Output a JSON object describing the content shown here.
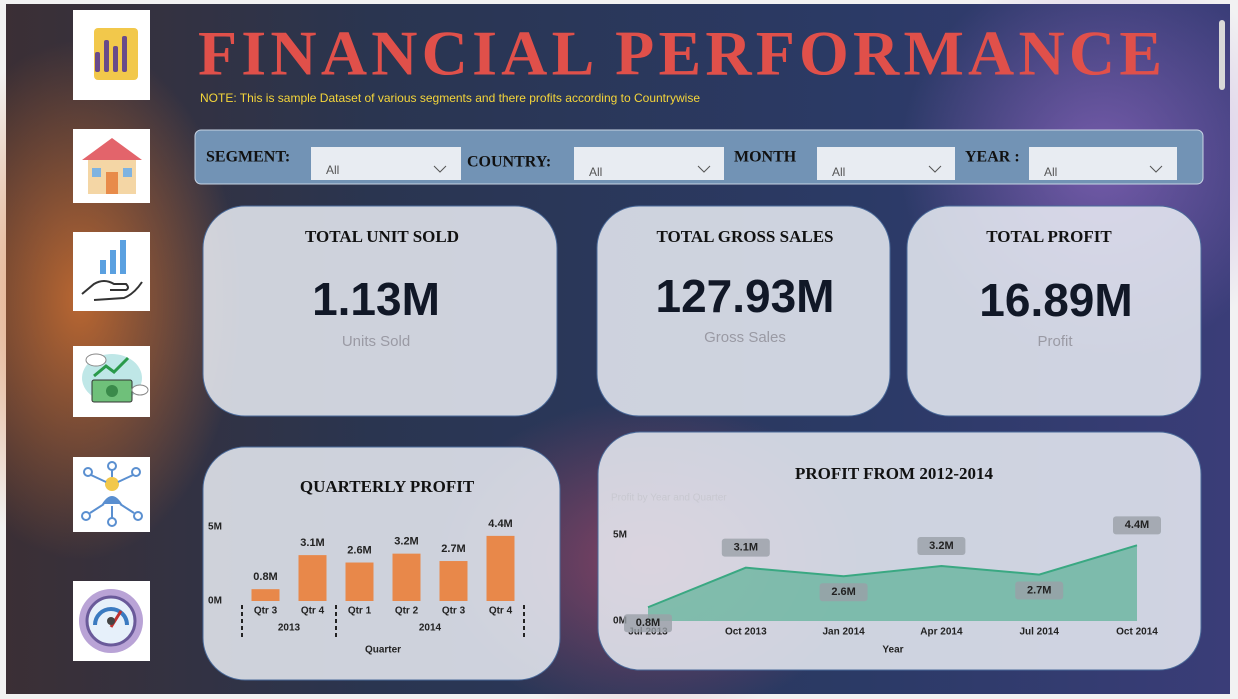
{
  "header": {
    "title": "FINANCIAL  PERFORMANCE",
    "note": "NOTE: This is sample Dataset of various segments and there profits according to Countrywise"
  },
  "filters": [
    {
      "label": "SEGMENT:",
      "value": "All"
    },
    {
      "label": "COUNTRY:",
      "value": "All"
    },
    {
      "label": "MONTH",
      "value": "All"
    },
    {
      "label": "YEAR :",
      "value": "All"
    }
  ],
  "kpis": [
    {
      "title": "TOTAL UNIT SOLD",
      "value": "1.13M",
      "caption": "Units Sold"
    },
    {
      "title": "TOTAL GROSS SALES",
      "value": "127.93M",
      "caption": "Gross Sales"
    },
    {
      "title": "TOTAL PROFIT",
      "value": "16.89M",
      "caption": "Profit"
    }
  ],
  "chart_data": [
    {
      "type": "bar",
      "title": "QUARTERLY PROFIT",
      "xlabel": "Quarter",
      "categories": [
        "Qtr 3",
        "Qtr 4",
        "Qtr 1",
        "Qtr 2",
        "Qtr 3",
        "Qtr 4"
      ],
      "category_groups": [
        {
          "label": "2013",
          "size": 2
        },
        {
          "label": "2014",
          "size": 4
        }
      ],
      "values": [
        800000,
        3100000,
        2600000,
        3200000,
        2700000,
        4400000
      ],
      "value_labels": [
        "0.8M",
        "3.1M",
        "2.6M",
        "3.2M",
        "2.7M",
        "4.4M"
      ],
      "color": "#e8884a",
      "ylim": [
        0,
        5000000
      ],
      "yticks": [
        {
          "value": 0,
          "label": "0M"
        },
        {
          "value": 5000000,
          "label": "5M"
        }
      ]
    },
    {
      "type": "area",
      "title": "PROFIT FROM 2012-2014",
      "subtitle": "Profit by Year and Quarter",
      "xlabel": "Year",
      "categories": [
        "Jul 2013",
        "Oct 2013",
        "Jan 2014",
        "Apr 2014",
        "Jul 2014",
        "Oct 2014"
      ],
      "values": [
        800000,
        3100000,
        2600000,
        3200000,
        2700000,
        4400000
      ],
      "value_labels": [
        "0.8M",
        "3.1M",
        "2.6M",
        "3.2M",
        "2.7M",
        "4.4M"
      ],
      "color": "#3aa882",
      "ylim": [
        0,
        5000000
      ],
      "yticks": [
        {
          "value": 0,
          "label": "0M"
        },
        {
          "value": 5000000,
          "label": "5M"
        }
      ]
    }
  ]
}
